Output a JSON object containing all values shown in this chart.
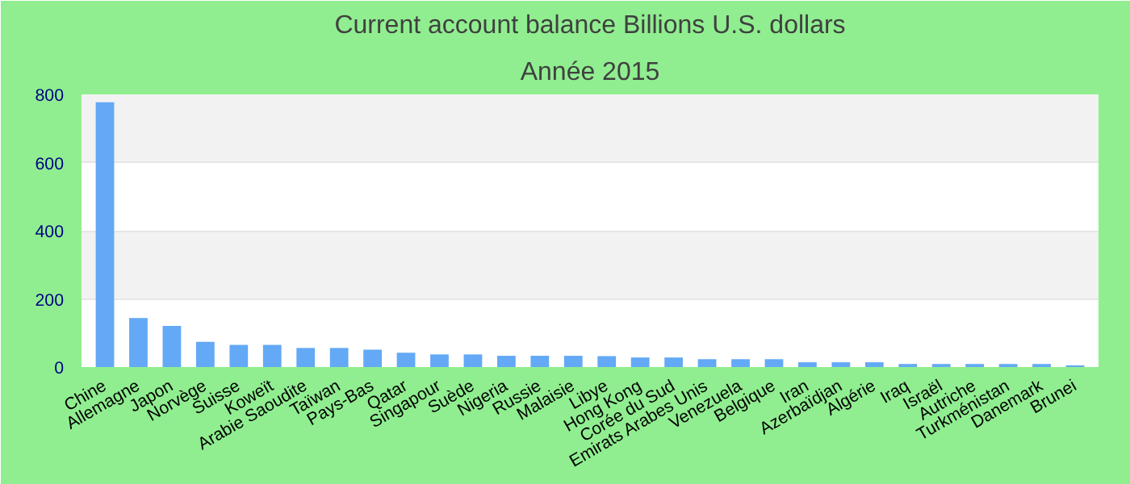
{
  "chart_data": {
    "type": "bar",
    "title": "Current account balance Billions U.S. dollars",
    "subtitle": "Année 2015",
    "categories": [
      "Chine",
      "Allemagne",
      "Japon",
      "Norvège",
      "Suisse",
      "Koweït",
      "Arabie Saoudite",
      "Taïwan",
      "Pays-Bas",
      "Qatar",
      "Singapour",
      "Suède",
      "Nigeria",
      "Russie",
      "Malaisie",
      "Libye",
      "Hong Kong",
      "Corée du Sud",
      "Emirats Arabes Unis",
      "Venezuela",
      "Belgique",
      "Iran",
      "Azerbaïdjan",
      "Algérie",
      "Iraq",
      "Israël",
      "Autriche",
      "Turkménistan",
      "Danemark",
      "Brunei"
    ],
    "values": [
      777,
      144,
      121,
      74,
      65,
      65,
      56,
      56,
      51,
      42,
      37,
      37,
      33,
      33,
      33,
      32,
      28,
      28,
      23,
      23,
      23,
      14,
      14,
      14,
      9,
      9,
      9,
      9,
      9,
      5
    ],
    "color": "#63a9f5",
    "ylim": [
      0,
      800
    ],
    "yticks": [
      0,
      200,
      400,
      600,
      800
    ],
    "grid": "y"
  }
}
